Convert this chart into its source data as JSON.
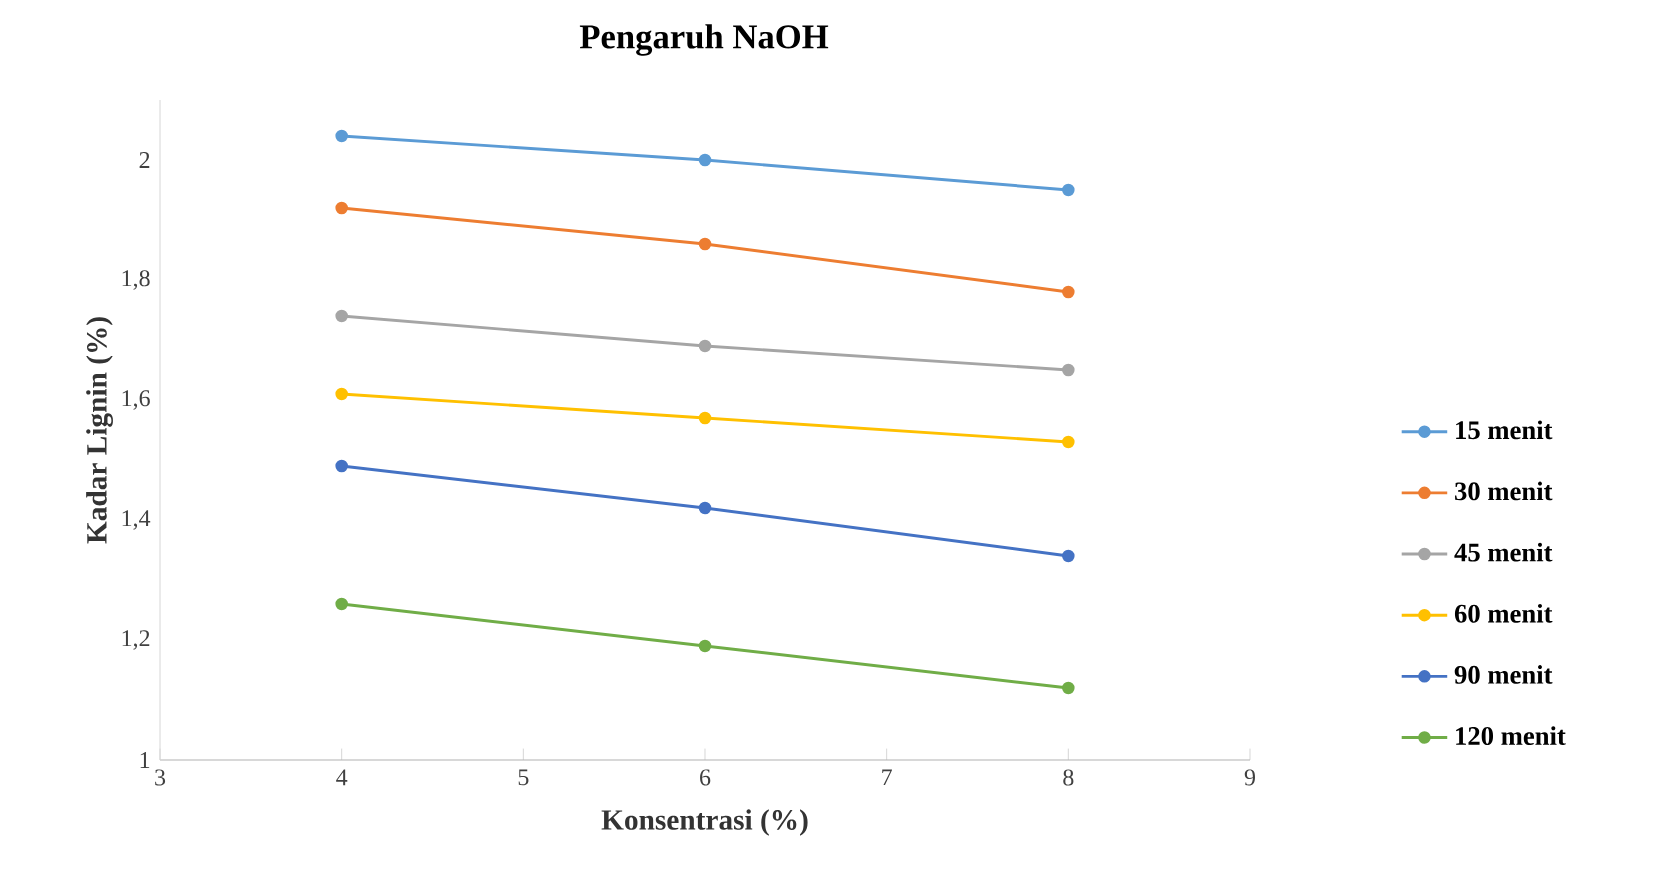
{
  "chart_data": {
    "type": "line",
    "title": "Pengaruh NaOH",
    "xlabel": "Konsentrasi (%)",
    "ylabel": "Kadar Lignin (%)",
    "x": [
      4,
      6,
      8
    ],
    "series": [
      {
        "name": "15 menit",
        "color": "#5b9bd5",
        "values": [
          2.04,
          2.0,
          1.95
        ]
      },
      {
        "name": "30 menit",
        "color": "#ed7d31",
        "values": [
          1.92,
          1.86,
          1.78
        ]
      },
      {
        "name": "45 menit",
        "color": "#a5a5a5",
        "values": [
          1.74,
          1.69,
          1.65
        ]
      },
      {
        "name": "60 menit",
        "color": "#ffc000",
        "values": [
          1.61,
          1.57,
          1.53
        ]
      },
      {
        "name": "90 menit",
        "color": "#4472c4",
        "values": [
          1.49,
          1.42,
          1.34
        ]
      },
      {
        "name": "120 menit",
        "color": "#70ad47",
        "values": [
          1.26,
          1.19,
          1.12
        ]
      }
    ],
    "xlim": [
      3,
      9
    ],
    "xticks": [
      3,
      4,
      5,
      6,
      7,
      8,
      9
    ],
    "ylim": [
      1,
      2.1
    ],
    "yticks": [
      {
        "value": 1,
        "label": "1"
      },
      {
        "value": 1.2,
        "label": "1,2"
      },
      {
        "value": 1.4,
        "label": "1,4"
      },
      {
        "value": 1.6,
        "label": "1,6"
      },
      {
        "value": 1.8,
        "label": "1,8"
      },
      {
        "value": 2,
        "label": "2"
      }
    ],
    "grid": false,
    "legend": "right",
    "marker": "circle",
    "line_style": "solid"
  }
}
